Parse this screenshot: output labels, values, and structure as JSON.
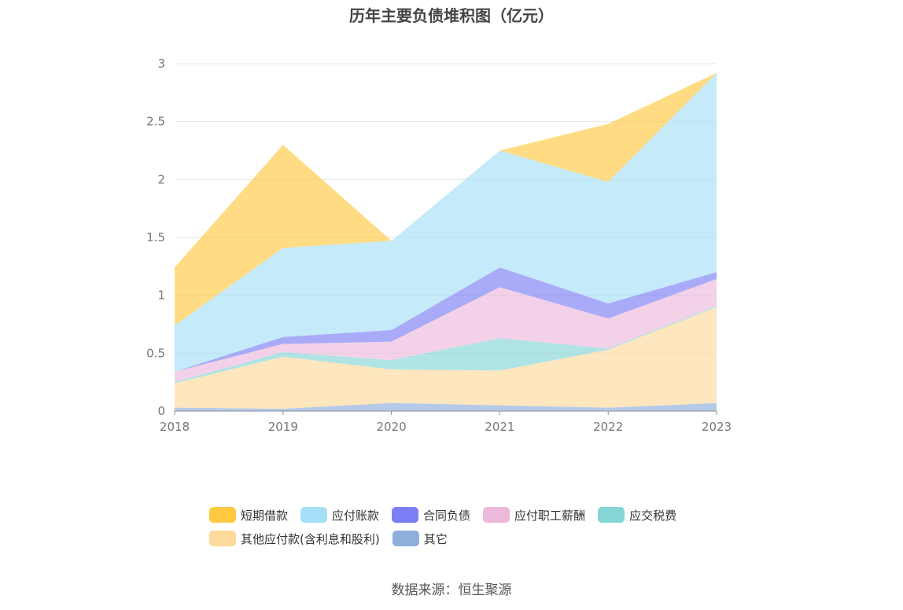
{
  "title": "历年主要负债堆积图（亿元）",
  "source": "数据来源：恒生聚源",
  "chart_data": {
    "type": "area",
    "stacked": true,
    "categories": [
      "2018",
      "2019",
      "2020",
      "2021",
      "2022",
      "2023"
    ],
    "ylim": [
      0,
      3
    ],
    "yticks": [
      "0",
      "0.5",
      "1",
      "1.5",
      "2",
      "2.5",
      "3"
    ],
    "grid": true,
    "legend_position": "bottom",
    "series": [
      {
        "name": "其它",
        "color": "#8eaedb",
        "values": [
          0.03,
          0.02,
          0.07,
          0.05,
          0.03,
          0.07
        ]
      },
      {
        "name": "其他应付款(含利息和股利)",
        "color": "#fdd99b",
        "values": [
          0.21,
          0.45,
          0.29,
          0.3,
          0.5,
          0.83
        ]
      },
      {
        "name": "应交税费",
        "color": "#85d5d6",
        "values": [
          0.01,
          0.04,
          0.08,
          0.28,
          0.01,
          0.01
        ]
      },
      {
        "name": "应付职工薪酬",
        "color": "#ecb9dd",
        "values": [
          0.09,
          0.07,
          0.16,
          0.44,
          0.26,
          0.23
        ]
      },
      {
        "name": "合同负债",
        "color": "#7b7ef5",
        "values": [
          0.0,
          0.06,
          0.1,
          0.17,
          0.13,
          0.06
        ]
      },
      {
        "name": "应付账款",
        "color": "#a6dff8",
        "values": [
          0.4,
          0.77,
          0.77,
          1.01,
          1.05,
          1.72
        ]
      },
      {
        "name": "短期借款",
        "color": "#ffc940",
        "values": [
          0.5,
          0.89,
          0.0,
          0.0,
          0.5,
          0.0
        ]
      }
    ],
    "legend_order": [
      "短期借款",
      "应付账款",
      "合同负债",
      "应付职工薪酬",
      "应交税费",
      "其他应付款(含利息和股利)",
      "其它"
    ]
  }
}
